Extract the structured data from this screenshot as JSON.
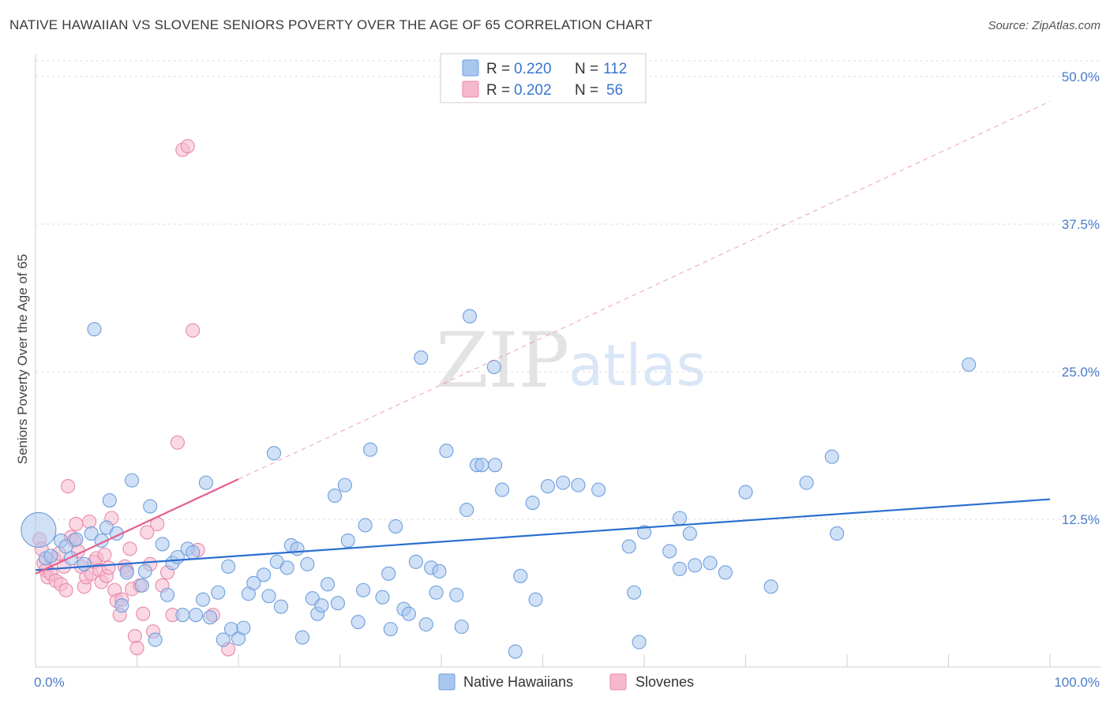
{
  "title": "NATIVE HAWAIIAN VS SLOVENE SENIORS POVERTY OVER THE AGE OF 65 CORRELATION CHART",
  "source": "Source: ZipAtlas.com",
  "watermark": {
    "zip": "ZIP",
    "atlas": "atlas"
  },
  "legend_top": {
    "rows": [
      {
        "r_label": "R =",
        "r_value": "0.220",
        "n_label": "N =",
        "n_value": "112"
      },
      {
        "r_label": "R =",
        "r_value": "0.202",
        "n_label": "N =",
        "n_value": "56"
      }
    ]
  },
  "legend_bottom": {
    "items": [
      {
        "label": "Native Hawaiians"
      },
      {
        "label": "Slovenes"
      }
    ]
  },
  "colors": {
    "blue_fill": "#a9c6ee",
    "blue_stroke": "#6f9fdc",
    "blue_line": "#2a6fd0",
    "pink_fill": "#f6b8cd",
    "pink_stroke": "#e889a9",
    "pink_line": "#e4608f",
    "grid": "#dddddd",
    "axis_text": "#4a7cc9"
  },
  "chart_data": {
    "type": "scatter",
    "title": "NATIVE HAWAIIAN VS SLOVENE SENIORS POVERTY OVER THE AGE OF 65 CORRELATION CHART",
    "xlabel": "",
    "ylabel": "Seniors Poverty Over the Age of 65",
    "xlim": [
      0,
      100
    ],
    "ylim": [
      0,
      50
    ],
    "x_tick_labels": [
      "0.0%",
      "100.0%"
    ],
    "y_ticks": [
      12.5,
      25.0,
      37.5,
      50.0
    ],
    "y_tick_labels": [
      "12.5%",
      "25.0%",
      "37.5%",
      "50.0%"
    ],
    "grid": true,
    "series": [
      {
        "name": "Native Hawaiians",
        "r": 0.22,
        "n": 112,
        "trend": {
          "x": [
            0,
            100
          ],
          "y": [
            8.2,
            14.2
          ]
        },
        "points": [
          [
            0.3,
            11.6
          ],
          [
            1.0,
            9.2
          ],
          [
            1.5,
            9.4
          ],
          [
            2.5,
            10.7
          ],
          [
            3.0,
            10.2
          ],
          [
            3.5,
            9.2
          ],
          [
            4.0,
            10.8
          ],
          [
            4.8,
            8.7
          ],
          [
            5.5,
            11.3
          ],
          [
            5.8,
            28.6
          ],
          [
            6.5,
            10.7
          ],
          [
            7.0,
            11.8
          ],
          [
            7.3,
            14.1
          ],
          [
            8.0,
            11.3
          ],
          [
            8.5,
            5.2
          ],
          [
            9.0,
            8.0
          ],
          [
            9.5,
            15.8
          ],
          [
            10.5,
            6.9
          ],
          [
            10.8,
            8.1
          ],
          [
            11.3,
            13.6
          ],
          [
            11.8,
            2.3
          ],
          [
            12.5,
            10.4
          ],
          [
            13.0,
            6.1
          ],
          [
            13.5,
            8.8
          ],
          [
            14.0,
            9.3
          ],
          [
            14.5,
            4.4
          ],
          [
            15.0,
            10.0
          ],
          [
            15.5,
            9.7
          ],
          [
            15.8,
            4.4
          ],
          [
            16.5,
            5.7
          ],
          [
            16.8,
            15.6
          ],
          [
            17.2,
            4.2
          ],
          [
            18.0,
            6.3
          ],
          [
            18.5,
            2.3
          ],
          [
            19.0,
            8.5
          ],
          [
            19.3,
            3.2
          ],
          [
            20.0,
            2.4
          ],
          [
            20.5,
            3.3
          ],
          [
            21.0,
            6.2
          ],
          [
            21.5,
            7.1
          ],
          [
            22.5,
            7.8
          ],
          [
            23.0,
            6.0
          ],
          [
            23.5,
            18.1
          ],
          [
            23.8,
            8.9
          ],
          [
            24.2,
            5.1
          ],
          [
            24.8,
            8.4
          ],
          [
            25.2,
            10.3
          ],
          [
            25.8,
            10.0
          ],
          [
            26.3,
            2.5
          ],
          [
            26.8,
            8.7
          ],
          [
            27.3,
            5.8
          ],
          [
            27.8,
            4.5
          ],
          [
            28.2,
            5.2
          ],
          [
            28.8,
            7.0
          ],
          [
            29.5,
            14.5
          ],
          [
            29.8,
            5.4
          ],
          [
            30.5,
            15.4
          ],
          [
            30.8,
            10.7
          ],
          [
            31.8,
            3.8
          ],
          [
            32.3,
            6.5
          ],
          [
            32.5,
            12.0
          ],
          [
            33.0,
            18.4
          ],
          [
            34.2,
            5.9
          ],
          [
            34.8,
            7.9
          ],
          [
            35.0,
            3.2
          ],
          [
            35.5,
            11.9
          ],
          [
            36.3,
            4.9
          ],
          [
            36.8,
            4.5
          ],
          [
            37.5,
            8.9
          ],
          [
            38.0,
            26.2
          ],
          [
            38.5,
            3.6
          ],
          [
            39.0,
            8.4
          ],
          [
            39.5,
            6.3
          ],
          [
            39.8,
            8.1
          ],
          [
            40.5,
            18.3
          ],
          [
            41.5,
            6.1
          ],
          [
            42.0,
            3.4
          ],
          [
            42.5,
            13.3
          ],
          [
            42.8,
            29.7
          ],
          [
            43.5,
            17.1
          ],
          [
            44.0,
            17.1
          ],
          [
            45.2,
            25.4
          ],
          [
            45.3,
            17.1
          ],
          [
            46.0,
            15.0
          ],
          [
            47.3,
            1.3
          ],
          [
            47.8,
            7.7
          ],
          [
            49.0,
            13.9
          ],
          [
            49.3,
            5.7
          ],
          [
            50.5,
            15.3
          ],
          [
            52.0,
            15.6
          ],
          [
            53.5,
            15.4
          ],
          [
            55.5,
            15.0
          ],
          [
            58.5,
            10.2
          ],
          [
            59.0,
            6.3
          ],
          [
            59.5,
            2.1
          ],
          [
            60.0,
            11.4
          ],
          [
            62.5,
            9.8
          ],
          [
            63.5,
            12.6
          ],
          [
            63.5,
            8.3
          ],
          [
            64.5,
            11.3
          ],
          [
            65.0,
            8.6
          ],
          [
            66.5,
            8.8
          ],
          [
            68.0,
            8.0
          ],
          [
            70.0,
            14.8
          ],
          [
            72.5,
            6.8
          ],
          [
            76.0,
            15.6
          ],
          [
            78.5,
            17.8
          ],
          [
            79.0,
            11.3
          ],
          [
            92.0,
            25.6
          ]
        ]
      },
      {
        "name": "Slovenes",
        "r": 0.202,
        "n": 56,
        "trend": {
          "x": [
            0,
            20
          ],
          "y": [
            7.9,
            15.9
          ]
        },
        "points": [
          [
            0.4,
            10.8
          ],
          [
            0.6,
            10.0
          ],
          [
            0.8,
            8.8
          ],
          [
            1.0,
            8.2
          ],
          [
            1.2,
            7.6
          ],
          [
            1.5,
            7.9
          ],
          [
            1.8,
            9.2
          ],
          [
            2.0,
            7.3
          ],
          [
            2.3,
            9.6
          ],
          [
            2.5,
            7.0
          ],
          [
            2.8,
            8.5
          ],
          [
            3.0,
            6.5
          ],
          [
            3.2,
            15.3
          ],
          [
            3.5,
            11.0
          ],
          [
            3.8,
            10.7
          ],
          [
            4.0,
            12.1
          ],
          [
            4.2,
            9.8
          ],
          [
            4.5,
            8.5
          ],
          [
            4.8,
            6.8
          ],
          [
            5.0,
            7.6
          ],
          [
            5.3,
            12.3
          ],
          [
            5.5,
            7.9
          ],
          [
            5.8,
            8.9
          ],
          [
            6.0,
            9.2
          ],
          [
            6.3,
            8.2
          ],
          [
            6.5,
            7.2
          ],
          [
            6.8,
            9.5
          ],
          [
            7.0,
            7.7
          ],
          [
            7.2,
            8.4
          ],
          [
            7.5,
            12.6
          ],
          [
            7.8,
            6.5
          ],
          [
            8.0,
            5.6
          ],
          [
            8.3,
            4.4
          ],
          [
            8.5,
            5.7
          ],
          [
            8.8,
            8.5
          ],
          [
            9.0,
            8.2
          ],
          [
            9.3,
            10.0
          ],
          [
            9.5,
            6.6
          ],
          [
            9.8,
            2.6
          ],
          [
            10.0,
            1.6
          ],
          [
            10.3,
            6.9
          ],
          [
            10.6,
            4.5
          ],
          [
            11.0,
            11.4
          ],
          [
            11.3,
            8.7
          ],
          [
            11.6,
            3.0
          ],
          [
            12.0,
            12.1
          ],
          [
            12.5,
            6.9
          ],
          [
            13.0,
            8.0
          ],
          [
            13.5,
            4.4
          ],
          [
            14.0,
            19.0
          ],
          [
            14.5,
            43.8
          ],
          [
            15.0,
            44.1
          ],
          [
            15.5,
            28.5
          ],
          [
            16.0,
            9.9
          ],
          [
            17.5,
            4.4
          ],
          [
            19.0,
            1.5
          ]
        ]
      }
    ]
  }
}
